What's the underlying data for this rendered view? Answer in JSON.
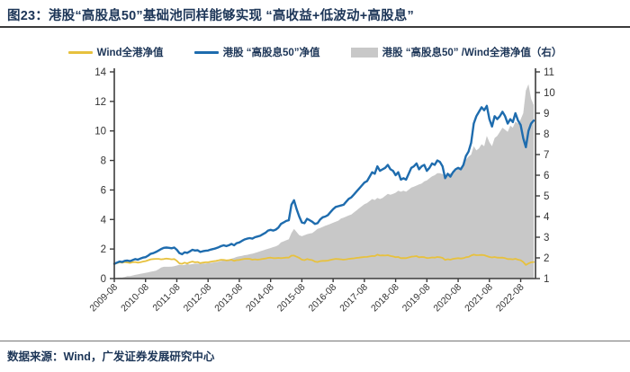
{
  "title": "图23：港股“高股息50”基础池同样能够实现 “高收益+低波动+高股息”",
  "source_note": "数据来源：Wind，广发证券发展研究中心",
  "colors": {
    "title_navy": "#1c3557",
    "wind_line": "#e7c13e",
    "hdy50_line": "#1e6cae",
    "ratio_area": "#c8c8c8",
    "axis": "#3c3c3c",
    "tick_text": "#333333"
  },
  "chart_data": {
    "type": "line",
    "subtype": "two lines (left axis) + one area series (right axis)",
    "x_start": "2009-08",
    "x_end": "2023-01",
    "x_frequency": "monthly",
    "x_tick_labels": [
      "2009-08",
      "2010-08",
      "2011-08",
      "2012-08",
      "2013-08",
      "2014-08",
      "2015-08",
      "2016-08",
      "2017-08",
      "2018-08",
      "2019-08",
      "2020-08",
      "2021-08",
      "2022-08"
    ],
    "left_axis": {
      "min": 0,
      "max": 14,
      "ticks": [
        0,
        2,
        4,
        6,
        8,
        10,
        12,
        14
      ]
    },
    "right_axis": {
      "min": 1,
      "max": 11,
      "ticks": [
        1,
        2,
        3,
        4,
        5,
        6,
        7,
        8,
        9,
        10,
        11
      ]
    },
    "grid": false,
    "legend_position": "top",
    "series": [
      {
        "name": "Wind全港净值",
        "axis": "left",
        "type": "line",
        "color": "#e7c13e",
        "values": [
          1.0,
          1.04,
          1.1,
          1.07,
          1.12,
          1.09,
          1.06,
          1.1,
          1.12,
          1.08,
          1.1,
          1.15,
          1.18,
          1.24,
          1.3,
          1.32,
          1.33,
          1.33,
          1.3,
          1.32,
          1.35,
          1.33,
          1.3,
          1.32,
          1.2,
          1.03,
          1.0,
          1.08,
          1.02,
          1.1,
          1.15,
          1.1,
          1.12,
          1.05,
          1.08,
          1.1,
          1.1,
          1.14,
          1.17,
          1.19,
          1.23,
          1.27,
          1.26,
          1.23,
          1.25,
          1.28,
          1.2,
          1.25,
          1.26,
          1.3,
          1.33,
          1.34,
          1.33,
          1.28,
          1.3,
          1.28,
          1.3,
          1.33,
          1.36,
          1.4,
          1.42,
          1.38,
          1.38,
          1.4,
          1.38,
          1.4,
          1.42,
          1.42,
          1.55,
          1.56,
          1.48,
          1.4,
          1.28,
          1.25,
          1.32,
          1.28,
          1.25,
          1.15,
          1.12,
          1.18,
          1.2,
          1.2,
          1.22,
          1.26,
          1.3,
          1.33,
          1.32,
          1.3,
          1.28,
          1.3,
          1.33,
          1.35,
          1.37,
          1.4,
          1.42,
          1.44,
          1.46,
          1.47,
          1.5,
          1.53,
          1.52,
          1.62,
          1.56,
          1.57,
          1.56,
          1.58,
          1.53,
          1.5,
          1.45,
          1.46,
          1.38,
          1.39,
          1.38,
          1.43,
          1.48,
          1.5,
          1.52,
          1.44,
          1.46,
          1.45,
          1.39,
          1.4,
          1.43,
          1.42,
          1.46,
          1.44,
          1.4,
          1.26,
          1.31,
          1.28,
          1.33,
          1.36,
          1.38,
          1.36,
          1.38,
          1.44,
          1.47,
          1.56,
          1.62,
          1.58,
          1.59,
          1.6,
          1.58,
          1.52,
          1.46,
          1.43,
          1.46,
          1.42,
          1.41,
          1.42,
          1.38,
          1.32,
          1.32,
          1.3,
          1.34,
          1.28,
          1.24,
          1.12,
          0.92,
          1.02,
          1.1,
          1.12
        ]
      },
      {
        "name": "港股 “高股息50”净值",
        "axis": "left",
        "type": "line",
        "color": "#1e6cae",
        "values": [
          1.0,
          1.08,
          1.15,
          1.12,
          1.2,
          1.22,
          1.18,
          1.25,
          1.32,
          1.28,
          1.35,
          1.42,
          1.45,
          1.55,
          1.68,
          1.72,
          1.8,
          1.9,
          2.0,
          2.08,
          2.1,
          2.08,
          2.05,
          2.1,
          1.95,
          1.72,
          1.65,
          1.78,
          1.74,
          1.84,
          1.95,
          1.9,
          1.92,
          1.8,
          1.85,
          1.88,
          1.9,
          1.96,
          2.0,
          2.05,
          2.12,
          2.2,
          2.25,
          2.2,
          2.26,
          2.35,
          2.25,
          2.4,
          2.45,
          2.55,
          2.65,
          2.7,
          2.74,
          2.7,
          2.8,
          2.85,
          2.9,
          3.0,
          3.1,
          3.25,
          3.3,
          3.25,
          3.32,
          3.45,
          3.7,
          3.8,
          3.9,
          3.95,
          5.0,
          5.3,
          4.7,
          4.2,
          3.8,
          3.75,
          4.05,
          3.95,
          3.85,
          3.7,
          3.75,
          4.0,
          4.15,
          4.2,
          4.3,
          4.5,
          4.7,
          4.85,
          4.9,
          4.95,
          5.0,
          5.2,
          5.4,
          5.5,
          5.7,
          5.9,
          6.1,
          6.3,
          6.5,
          6.6,
          6.9,
          7.2,
          7.1,
          7.6,
          7.3,
          7.4,
          7.5,
          7.7,
          7.4,
          7.3,
          7.0,
          7.2,
          6.7,
          6.8,
          6.7,
          7.1,
          7.5,
          7.6,
          7.8,
          7.4,
          7.6,
          7.7,
          7.3,
          7.5,
          7.8,
          7.7,
          8.0,
          7.9,
          7.6,
          6.8,
          7.1,
          6.9,
          7.2,
          7.4,
          7.5,
          7.4,
          7.7,
          8.3,
          8.6,
          9.2,
          10.5,
          11.0,
          11.3,
          11.6,
          11.4,
          11.7,
          10.8,
          10.3,
          11.0,
          10.8,
          11.0,
          11.3,
          11.0,
          10.5,
          10.8,
          10.6,
          11.2,
          10.7,
          10.4,
          9.5,
          8.9,
          10.0,
          10.5,
          10.7
        ]
      },
      {
        "name": "港股 “高股息50” /Wind全港净值（右）",
        "axis": "right",
        "type": "area",
        "color": "#c8c8c8",
        "values": [
          1.0,
          1.03,
          1.05,
          1.05,
          1.08,
          1.12,
          1.12,
          1.15,
          1.18,
          1.2,
          1.23,
          1.25,
          1.28,
          1.3,
          1.33,
          1.35,
          1.38,
          1.45,
          1.53,
          1.57,
          1.57,
          1.57,
          1.58,
          1.6,
          1.63,
          1.67,
          1.65,
          1.66,
          1.7,
          1.68,
          1.7,
          1.72,
          1.72,
          1.72,
          1.73,
          1.73,
          1.75,
          1.76,
          1.78,
          1.8,
          1.82,
          1.85,
          1.88,
          1.9,
          1.92,
          1.96,
          2.0,
          2.05,
          2.08,
          2.1,
          2.13,
          2.15,
          2.18,
          2.2,
          2.24,
          2.28,
          2.32,
          2.36,
          2.4,
          2.44,
          2.48,
          2.52,
          2.56,
          2.62,
          2.75,
          2.8,
          2.85,
          2.9,
          3.2,
          3.4,
          3.25,
          3.1,
          3.05,
          3.1,
          3.15,
          3.18,
          3.2,
          3.3,
          3.4,
          3.45,
          3.5,
          3.55,
          3.6,
          3.65,
          3.7,
          3.75,
          3.8,
          3.9,
          3.95,
          4.0,
          4.05,
          4.1,
          4.2,
          4.3,
          4.4,
          4.5,
          4.6,
          4.65,
          4.75,
          4.85,
          4.8,
          4.9,
          4.85,
          4.9,
          5.0,
          5.1,
          5.05,
          5.1,
          5.15,
          5.25,
          5.2,
          5.25,
          5.2,
          5.3,
          5.4,
          5.45,
          5.5,
          5.55,
          5.6,
          5.7,
          5.75,
          5.85,
          5.95,
          6.0,
          6.1,
          6.1,
          6.05,
          5.95,
          6.05,
          6.1,
          6.15,
          6.2,
          6.3,
          6.4,
          6.55,
          6.75,
          6.9,
          7.0,
          7.4,
          7.2,
          7.3,
          7.5,
          7.4,
          7.9,
          7.6,
          7.4,
          7.8,
          7.9,
          8.1,
          8.3,
          8.2,
          8.1,
          8.4,
          8.3,
          8.6,
          8.5,
          8.7,
          9.0,
          10.1,
          10.4,
          9.7,
          9.4
        ]
      }
    ]
  }
}
